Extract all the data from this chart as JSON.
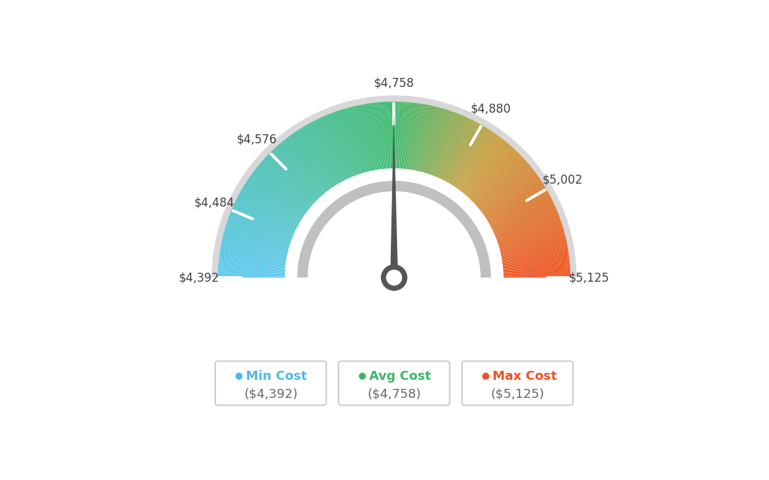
{
  "min_val": 4392,
  "avg_val": 4758,
  "max_val": 5125,
  "tick_labels": [
    "$4,392",
    "$4,484",
    "$4,576",
    "$4,758",
    "$4,880",
    "$5,002",
    "$5,125"
  ],
  "tick_values": [
    4392,
    4484,
    4576,
    4758,
    4880,
    5002,
    5125
  ],
  "legend": [
    {
      "label": "Min Cost",
      "value": "($4,392)",
      "color": "#4cb8e8"
    },
    {
      "label": "Avg Cost",
      "value": "($4,758)",
      "color": "#3ab86a"
    },
    {
      "label": "Max Cost",
      "value": "($5,125)",
      "color": "#f05020"
    }
  ],
  "background_color": "#ffffff",
  "needle_value": 4758,
  "color_stops": [
    [
      0.0,
      "#5bc8f0"
    ],
    [
      0.5,
      "#3dba6e"
    ],
    [
      0.7,
      "#c8a040"
    ],
    [
      1.0,
      "#f05020"
    ]
  ]
}
